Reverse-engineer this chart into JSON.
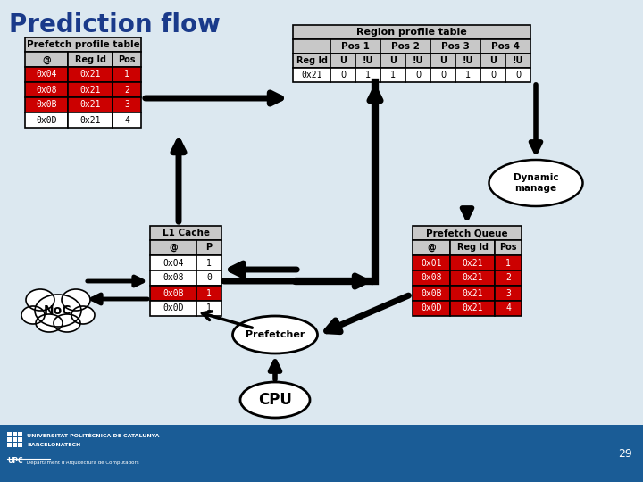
{
  "title": "Prediction flow",
  "bg_color": "#dce8f0",
  "footer_color": "#1a5c96",
  "page_number": "29",
  "prefetch_table_title": "Prefetch profile table",
  "prefetch_headers": [
    "@",
    "Reg Id",
    "Pos"
  ],
  "prefetch_rows": [
    [
      "0x04",
      "0x21",
      "1"
    ],
    [
      "0x08",
      "0x21",
      "2"
    ],
    [
      "0x0B",
      "0x21",
      "3"
    ],
    [
      "0x0D",
      "0x21",
      "4"
    ]
  ],
  "prefetch_highlight": [
    0,
    1,
    2
  ],
  "region_table_title": "Region profile table",
  "region_pos_headers": [
    "Pos 1",
    "Pos 2",
    "Pos 3",
    "Pos 4"
  ],
  "region_subheaders": [
    "U",
    "!U",
    "U",
    "!U",
    "U",
    "!U",
    "U",
    "!U"
  ],
  "region_reg_id": "0x21",
  "region_data_row": [
    "0",
    "1",
    "1",
    "0",
    "0",
    "1",
    "0",
    "0"
  ],
  "l1_title": "L1 Cache",
  "l1_headers": [
    "@",
    "P"
  ],
  "l1_rows": [
    [
      "0x04",
      "1"
    ],
    [
      "0x08",
      "0"
    ],
    [
      "0x0B",
      "1"
    ],
    [
      "0x0D",
      "1"
    ]
  ],
  "l1_highlight": [
    2
  ],
  "prefetch_queue_title": "Prefetch Queue",
  "pq_headers": [
    "@",
    "Reg Id",
    "Pos"
  ],
  "pq_rows": [
    [
      "0x01",
      "0x21",
      "1"
    ],
    [
      "0x08",
      "0x21",
      "2"
    ],
    [
      "0x0B",
      "0x21",
      "3"
    ],
    [
      "0x0D",
      "0x21",
      "4"
    ]
  ],
  "pq_highlight": [
    0,
    1,
    2,
    3
  ],
  "highlight_color": "#cc0000",
  "header_bg": "#c8c8c8",
  "white": "#ffffff",
  "black": "#000000"
}
